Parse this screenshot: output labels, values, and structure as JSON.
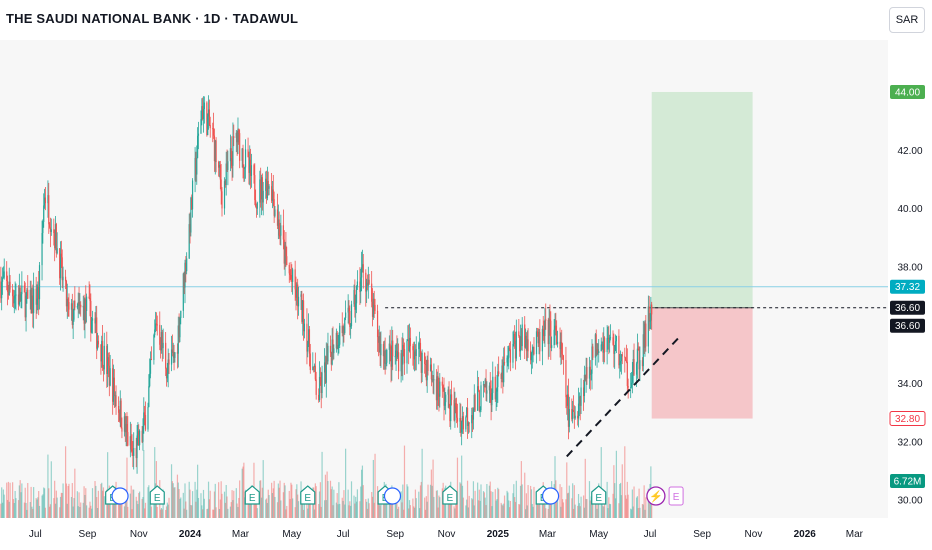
{
  "header": {
    "title": "THE SAUDI NATIONAL BANK · 1D · TADAWUL",
    "currency": "SAR"
  },
  "colors": {
    "up": "#26a69a",
    "down": "#ef5350",
    "target_zone": "#d4ead6",
    "stop_zone": "#f5c6c9",
    "level_line": "#89d0e6",
    "target_badge": "#4caf50",
    "stop_badge": "#f23645",
    "last_badge": "#089981",
    "level_badge": "#00acc1",
    "earnings_icon": "#1e9a8a",
    "dividend_icon": "#2962ff",
    "split_icon": "#9c27b0"
  },
  "chart_data": {
    "type": "candlestick",
    "ylim": [
      29.8,
      45.2
    ],
    "y_ticks": [
      30.0,
      32.0,
      34.0,
      36.0,
      38.0,
      40.0,
      42.0,
      44.0
    ],
    "x_ticks": [
      "Jul",
      "Sep",
      "Nov",
      "2024",
      "Mar",
      "May",
      "Jul",
      "Sep",
      "Nov",
      "2025",
      "Mar",
      "May",
      "Jul",
      "Sep",
      "Nov",
      "2026",
      "Mar"
    ],
    "x_range": [
      "2023-05-20",
      "2026-04-10"
    ],
    "price_path": [
      [
        "2023-05-20",
        37.5
      ],
      [
        "2023-06-10",
        37.0
      ],
      [
        "2023-06-25",
        36.7
      ],
      [
        "2023-07-05",
        37.1
      ],
      [
        "2023-07-12",
        40.6
      ],
      [
        "2023-07-25",
        39.0
      ],
      [
        "2023-08-10",
        36.3
      ],
      [
        "2023-09-01",
        36.6
      ],
      [
        "2023-09-20",
        35.0
      ],
      [
        "2023-10-05",
        33.5
      ],
      [
        "2023-10-25",
        31.5
      ],
      [
        "2023-11-05",
        32.2
      ],
      [
        "2023-11-12",
        33.5
      ],
      [
        "2023-11-22",
        36.2
      ],
      [
        "2023-12-05",
        34.5
      ],
      [
        "2023-12-15",
        35.0
      ],
      [
        "2023-12-28",
        38.5
      ],
      [
        "2024-01-15",
        43.5
      ],
      [
        "2024-01-28",
        42.5
      ],
      [
        "2024-02-08",
        40.5
      ],
      [
        "2024-02-25",
        42.5
      ],
      [
        "2024-03-20",
        40.5
      ],
      [
        "2024-04-05",
        41.0
      ],
      [
        "2024-04-25",
        38.0
      ],
      [
        "2024-05-15",
        36.3
      ],
      [
        "2024-06-01",
        33.5
      ],
      [
        "2024-06-20",
        35.5
      ],
      [
        "2024-07-10",
        36.2
      ],
      [
        "2024-07-25",
        38.0
      ],
      [
        "2024-08-15",
        35.2
      ],
      [
        "2024-09-01",
        34.9
      ],
      [
        "2024-09-25",
        35.3
      ],
      [
        "2024-10-15",
        34.2
      ],
      [
        "2024-11-01",
        33.4
      ],
      [
        "2024-11-20",
        32.7
      ],
      [
        "2024-12-10",
        33.5
      ],
      [
        "2025-01-01",
        33.9
      ],
      [
        "2025-01-25",
        35.6
      ],
      [
        "2025-02-15",
        35.2
      ],
      [
        "2025-03-01",
        35.8
      ],
      [
        "2025-03-15",
        35.5
      ],
      [
        "2025-03-28",
        32.5
      ],
      [
        "2025-04-15",
        34.2
      ],
      [
        "2025-05-01",
        35.6
      ],
      [
        "2025-05-20",
        35.3
      ],
      [
        "2025-06-05",
        34.3
      ],
      [
        "2025-06-20",
        34.8
      ],
      [
        "2025-06-30",
        36.3
      ],
      [
        "2025-07-03",
        36.6
      ]
    ],
    "volume": {
      "last_label": "6.72M"
    },
    "price_levels": [
      {
        "value": 44.0,
        "label": "44.00",
        "type": "target"
      },
      {
        "value": 37.32,
        "label": "37.32",
        "type": "level"
      },
      {
        "value": 36.6,
        "label": "36.60",
        "type": "entry"
      },
      {
        "value": 36.6,
        "label": "36.60",
        "type": "last"
      },
      {
        "value": 32.8,
        "label": "32.80",
        "type": "stop"
      }
    ],
    "position": {
      "start": "2025-07-03",
      "end": "2025-10-31",
      "entry": 36.6,
      "target": 44.0,
      "stop": 32.8
    },
    "horizontal_line": {
      "value": 37.32
    },
    "dotted_resistance": {
      "start": "2024-08-20",
      "value": 36.6
    },
    "trendline": {
      "points": [
        [
          "2025-03-24",
          31.5
        ],
        [
          "2025-08-05",
          35.6
        ]
      ]
    },
    "events": [
      {
        "date": "2023-10-01",
        "kind": "earnings",
        "label": "E"
      },
      {
        "date": "2023-10-05",
        "kind": "dividend",
        "label": ""
      },
      {
        "date": "2023-11-23",
        "kind": "earnings",
        "label": "E"
      },
      {
        "date": "2024-03-15",
        "kind": "earnings",
        "label": "E"
      },
      {
        "date": "2024-05-20",
        "kind": "earnings",
        "label": "E"
      },
      {
        "date": "2024-08-20",
        "kind": "earnings",
        "label": "E"
      },
      {
        "date": "2024-08-24",
        "kind": "dividend",
        "label": ""
      },
      {
        "date": "2024-11-05",
        "kind": "earnings",
        "label": "E"
      },
      {
        "date": "2025-02-24",
        "kind": "earnings",
        "label": "E"
      },
      {
        "date": "2025-02-28",
        "kind": "dividend",
        "label": ""
      },
      {
        "date": "2025-05-01",
        "kind": "earnings",
        "label": "E"
      },
      {
        "date": "2025-07-08",
        "kind": "split",
        "label": "⚡"
      },
      {
        "date": "2025-08-01",
        "kind": "upcoming",
        "label": "E"
      }
    ]
  }
}
